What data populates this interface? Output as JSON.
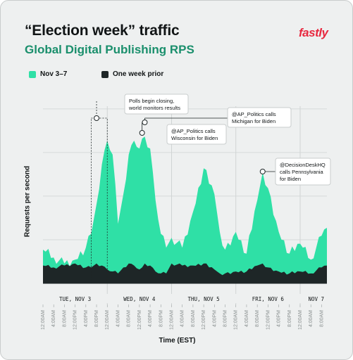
{
  "title": "“Election week” traffic",
  "subtitle": "Global Digital Publishing RPS",
  "logo_text": "fastly",
  "legend": [
    {
      "label": "Nov 3–7",
      "color": "#2fe0a6"
    },
    {
      "label": "One week prior",
      "color": "#1e2627"
    }
  ],
  "chart_data": {
    "type": "area",
    "xlabel": "Time (EST)",
    "ylabel": "Requests per second",
    "ylim": [
      0,
      10
    ],
    "grid": true,
    "legend_position": "top-left",
    "day_labels": [
      "TUE, NOV 3",
      "WED, NOV 4",
      "THU, NOV 5",
      "FRI, NOV 6",
      "NOV 7"
    ],
    "tick_labels": [
      "12:00AM",
      "4:00AM",
      "8:00AM",
      "12:00PM",
      "4:00PM",
      "8:00PM",
      "12:00AM",
      "4:00AM",
      "8:00AM",
      "12:00PM",
      "4:00PM",
      "8:00PM",
      "12:00AM",
      "4:00AM",
      "8:00AM",
      "12:00PM",
      "4:00PM",
      "8:00PM",
      "12:00AM",
      "4:00AM",
      "8:00AM",
      "12:00PM",
      "4:00PM",
      "8:00PM",
      "12:00AM",
      "4:00AM",
      "8:00AM"
    ],
    "x_hours": [
      0,
      4,
      8,
      12,
      16,
      18,
      20,
      22,
      24,
      26,
      28,
      30,
      32,
      34,
      36,
      37,
      38,
      40,
      42,
      44,
      46,
      48,
      52,
      56,
      60,
      64,
      66,
      68,
      72,
      76,
      80,
      82,
      84,
      88,
      92,
      96,
      100,
      104,
      106
    ],
    "series": [
      {
        "name": "Nov 3–7",
        "values": [
          1.7,
          1.3,
          1.0,
          1.2,
          1.8,
          2.5,
          4.0,
          6.0,
          7.2,
          6.5,
          3.0,
          4.5,
          6.5,
          7.2,
          6.8,
          7.3,
          7.4,
          6.8,
          4.2,
          2.5,
          1.8,
          2.3,
          1.8,
          3.6,
          5.8,
          4.5,
          2.6,
          1.7,
          2.6,
          1.5,
          4.2,
          5.6,
          4.8,
          2.6,
          1.5,
          2.0,
          1.2,
          2.4,
          2.8
        ]
      },
      {
        "name": "One week prior",
        "values": [
          0.9,
          0.8,
          0.9,
          1.0,
          0.8,
          0.8,
          1.0,
          0.9,
          0.7,
          0.6,
          0.5,
          0.8,
          1.0,
          0.9,
          0.7,
          0.8,
          1.0,
          0.9,
          0.6,
          0.5,
          0.5,
          1.0,
          0.9,
          0.9,
          1.0,
          0.7,
          0.5,
          0.5,
          0.6,
          0.6,
          0.9,
          1.0,
          0.8,
          0.6,
          0.5,
          0.6,
          0.5,
          0.8,
          0.9
        ]
      }
    ],
    "annotations": [
      {
        "text": "Polls begin closing, world monitors results",
        "x_hour": 20
      },
      {
        "text": "@AP_Politics calls Wisconsin for Biden",
        "x_hour": 37
      },
      {
        "text": "@AP_Politics calls Michigan for Biden",
        "x_hour": 38
      },
      {
        "text": "@DecisionDeskHQ calls Pennsylvania for Biden",
        "x_hour": 82
      }
    ]
  }
}
